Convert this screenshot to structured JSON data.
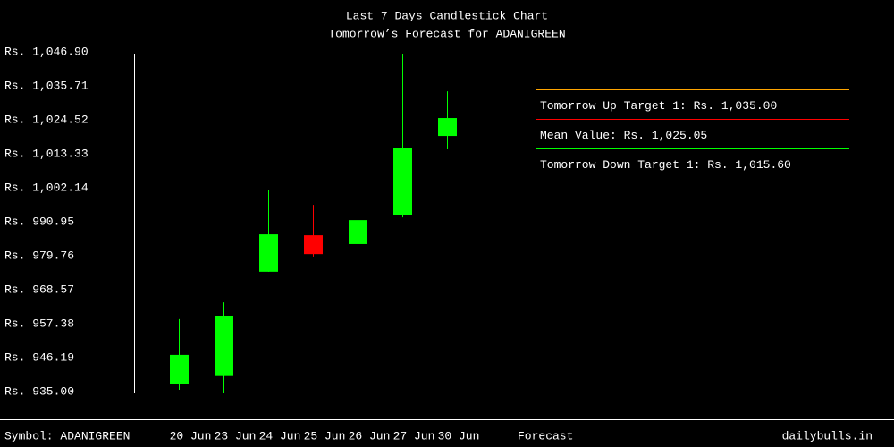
{
  "chart_data": {
    "type": "candlestick",
    "title": "Last 7 Days Candlestick Chart",
    "subtitle": "Tomorrow’s Forecast for ADANIGREEN",
    "categories": [
      "20 Jun",
      "23 Jun",
      "24 Jun",
      "25 Jun",
      "26 Jun",
      "27 Jun",
      "30 Jun"
    ],
    "open": [
      937.6,
      940.1,
      974.5,
      986.5,
      983.6,
      993.3,
      1019.2
    ],
    "high": [
      958.9,
      964.4,
      1001.5,
      996.5,
      993.0,
      1046.3,
      1033.9
    ],
    "low": [
      935.6,
      934.4,
      974.5,
      979.5,
      975.6,
      992.4,
      1014.8
    ],
    "close": [
      947.1,
      960.0,
      986.8,
      980.3,
      991.5,
      1015.1,
      1025.1
    ],
    "up_color": "#00ff00",
    "down_color": "#ff0000",
    "ylim": [
      935.0,
      1046.9
    ],
    "yticks": [
      {
        "value": 935.0,
        "label": "Rs. 935.00"
      },
      {
        "value": 946.19,
        "label": "Rs. 946.19"
      },
      {
        "value": 957.38,
        "label": "Rs. 957.38"
      },
      {
        "value": 968.57,
        "label": "Rs. 968.57"
      },
      {
        "value": 979.76,
        "label": "Rs. 979.76"
      },
      {
        "value": 990.95,
        "label": "Rs. 990.95"
      },
      {
        "value": 1002.14,
        "label": "Rs. 1,002.14"
      },
      {
        "value": 1013.33,
        "label": "Rs. 1,013.33"
      },
      {
        "value": 1024.52,
        "label": "Rs. 1,024.52"
      },
      {
        "value": 1035.71,
        "label": "Rs. 1,035.71"
      },
      {
        "value": 1046.9,
        "label": "Rs. 1,046.90"
      }
    ],
    "targets": [
      {
        "label": "Tomorrow Up Target 1: Rs. 1,035.00",
        "color": "#ffa500"
      },
      {
        "label": "Mean Value: Rs. 1,025.05",
        "color": "#ff0000"
      },
      {
        "label": "Tomorrow Down Target 1: Rs. 1,015.60",
        "color": "#00ff00"
      }
    ],
    "symbol_label": "Symbol: ADANIGREEN",
    "forecast_label": "Forecast",
    "site": "dailybulls.in"
  }
}
